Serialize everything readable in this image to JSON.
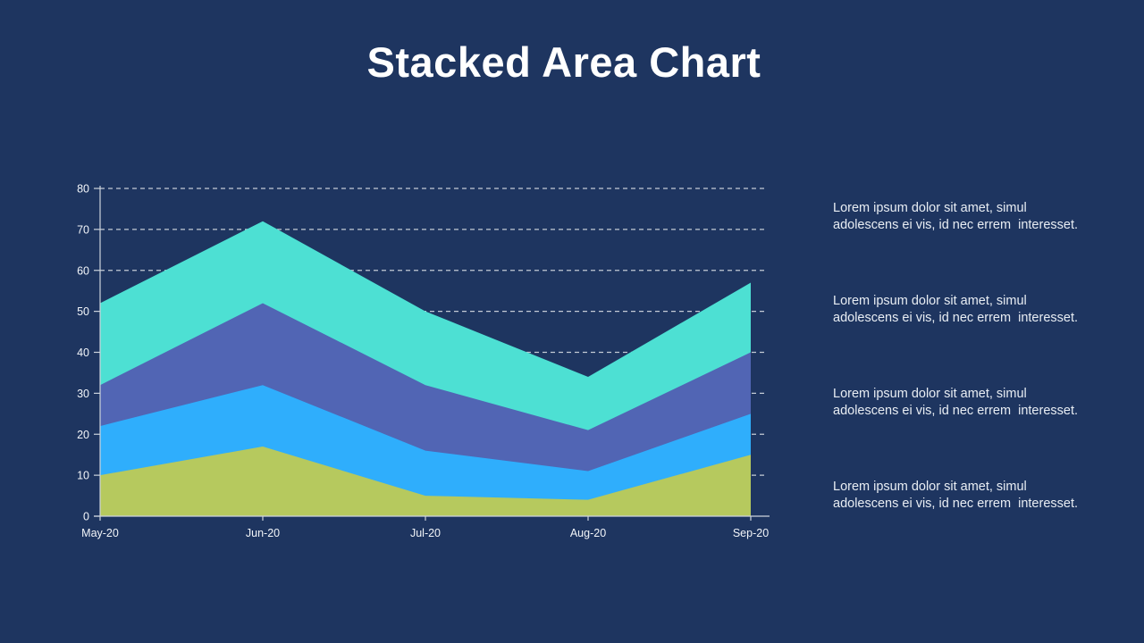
{
  "title": "Stacked Area Chart",
  "colors": {
    "background": "#1e3560",
    "title_text": "#ffffff",
    "body_text": "#e8edf3"
  },
  "chart_data": {
    "type": "area",
    "stacked": true,
    "categories": [
      "May-20",
      "Jun-20",
      "Jul-20",
      "Aug-20",
      "Sep-20"
    ],
    "series": [
      {
        "name": "series-1-green",
        "color": "#b6c95e",
        "values": [
          10,
          17,
          5,
          4,
          15
        ]
      },
      {
        "name": "series-2-blue",
        "color": "#2faefc",
        "values": [
          12,
          15,
          11,
          7,
          10
        ]
      },
      {
        "name": "series-3-indigo",
        "color": "#5165b4",
        "values": [
          10,
          20,
          16,
          10,
          15
        ]
      },
      {
        "name": "series-4-teal",
        "color": "#4de0d3",
        "values": [
          20,
          20,
          18,
          13,
          17
        ]
      }
    ],
    "stacked_totals": [
      52,
      72,
      50,
      34,
      57
    ],
    "cumulative_levels": {
      "series-1-green": [
        10,
        17,
        5,
        4,
        15
      ],
      "series-2-blue": [
        22,
        32,
        16,
        11,
        25
      ],
      "series-3-indigo": [
        32,
        52,
        32,
        21,
        40
      ],
      "series-4-teal": [
        52,
        72,
        50,
        34,
        57
      ]
    },
    "ylim": [
      0,
      80
    ],
    "yticks": [
      0,
      10,
      20,
      30,
      40,
      50,
      60,
      70,
      80
    ],
    "grid": "horizontal-dashed",
    "legend": "none",
    "gridline_color": "#c4cbd5",
    "axis_color": "#cdd4dd",
    "label_color": "#f2f5f9",
    "xlabel": "",
    "ylabel": ""
  },
  "text_blocks": [
    {
      "line1": "Lorem ipsum dolor sit amet, simul",
      "line2": "adolescens ei vis, id nec errem  interesset."
    },
    {
      "line1": "Lorem ipsum dolor sit amet, simul",
      "line2": "adolescens ei vis, id nec errem  interesset."
    },
    {
      "line1": "Lorem ipsum dolor sit amet, simul",
      "line2": "adolescens ei vis, id nec errem  interesset."
    },
    {
      "line1": "Lorem ipsum dolor sit amet, simul",
      "line2": "adolescens ei vis, id nec errem  interesset."
    }
  ]
}
